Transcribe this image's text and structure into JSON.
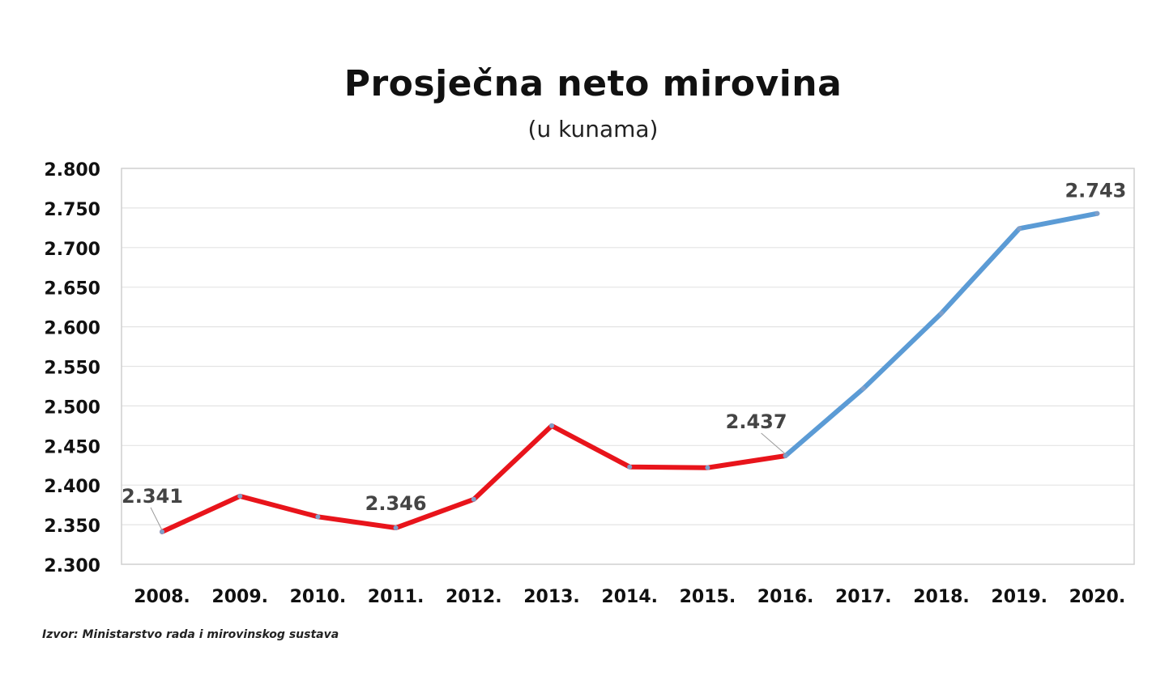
{
  "chart_data": {
    "type": "line",
    "title": "Prosječna neto mirovina",
    "subtitle": "(u kunama)",
    "source": "Izvor: Ministarstvo rada i mirovinskog sustava",
    "categories": [
      "2008.",
      "2009.",
      "2010.",
      "2011.",
      "2012.",
      "2013.",
      "2014.",
      "2015.",
      "2016.",
      "2017.",
      "2018.",
      "2019.",
      "2020."
    ],
    "values": [
      2341,
      2386,
      2360,
      2346,
      2382,
      2475,
      2423,
      2422,
      2437,
      2522,
      2617,
      2724,
      2743
    ],
    "segments": [
      {
        "from": 0,
        "to": 8,
        "color": "#e8141b"
      },
      {
        "from": 8,
        "to": 12,
        "color": "#5b9bd5"
      }
    ],
    "data_labels": [
      {
        "index": 0,
        "text": "2.341"
      },
      {
        "index": 3,
        "text": "2.346"
      },
      {
        "index": 8,
        "text": "2.437"
      },
      {
        "index": 12,
        "text": "2.743"
      }
    ],
    "ylim": [
      2300,
      2800
    ],
    "ytick_step": 50,
    "ytick_labels": [
      "2.300",
      "2.350",
      "2.400",
      "2.450",
      "2.500",
      "2.550",
      "2.600",
      "2.650",
      "2.700",
      "2.750",
      "2.800"
    ],
    "grid": true,
    "legend": "none",
    "marker_color": "#7f9fc9"
  }
}
